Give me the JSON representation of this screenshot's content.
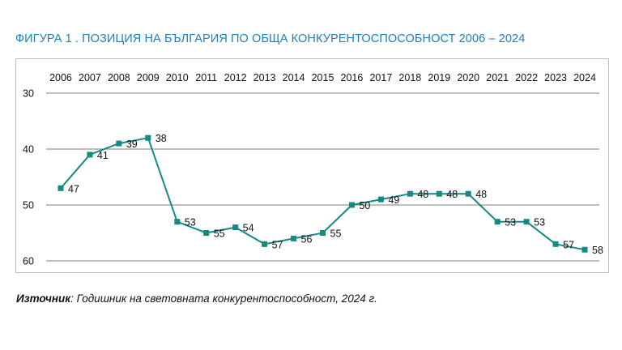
{
  "title": "ФИГУРА 1 . ПОЗИЦИЯ НА БЪЛГАРИЯ ПО ОБЩА КОНКУРЕНТОСПОСОБНОСТ 2006 – 2024",
  "source": {
    "label": "Източник",
    "text": ": Годишник на световната конкурентоспособност, 2024 г."
  },
  "colors": {
    "title": "#1f7fb8",
    "series": "#138a84",
    "grid": "#7f7f7f"
  },
  "chart_data": {
    "type": "line",
    "title": "ПОЗИЦИЯ НА БЪЛГАРИЯ ПО ОБЩА КОНКУРЕНТОСПОСОБНОСТ 2006 – 2024",
    "categories": [
      "2006",
      "2007",
      "2008",
      "2009",
      "2010",
      "2011",
      "2012",
      "2013",
      "2014",
      "2015",
      "2016",
      "2017",
      "2018",
      "2019",
      "2020",
      "2021",
      "2022",
      "2023",
      "2024"
    ],
    "series": [
      {
        "name": "Позиция",
        "values": [
          47,
          41,
          39,
          38,
          53,
          55,
          54,
          57,
          56,
          55,
          50,
          49,
          48,
          48,
          48,
          53,
          53,
          57,
          58
        ]
      }
    ],
    "ylim": [
      30,
      60
    ],
    "y_inverted": true,
    "yticks": [
      30,
      40,
      50,
      60
    ],
    "x_axis_position": "top",
    "grid": true,
    "data_labels": true,
    "xlabel": "",
    "ylabel": ""
  }
}
